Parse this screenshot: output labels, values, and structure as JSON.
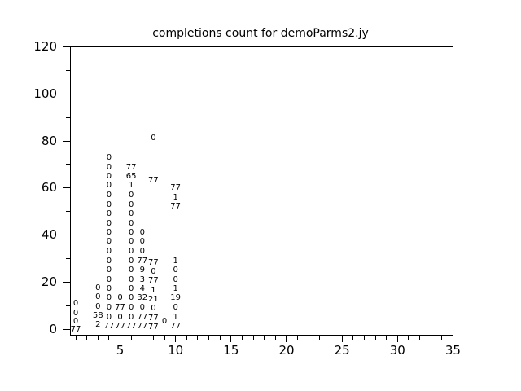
{
  "colors": {
    "background": "#ffffff",
    "foreground": "#000000"
  },
  "chart_data": {
    "type": "scatter",
    "marker_style": "text-label",
    "title": "completions count for demoParms2.jy",
    "xlabel": "",
    "ylabel": "",
    "xlim": [
      0.5,
      35
    ],
    "ylim": [
      0,
      120
    ],
    "grid": false,
    "legend": null,
    "tick_direction": "out",
    "x_major_ticks": [
      5,
      10,
      15,
      20,
      25,
      30,
      35
    ],
    "x_major_tick_labels": [
      "5",
      "10",
      "15",
      "20",
      "25",
      "30",
      "35"
    ],
    "x_minor_tick_range": [
      1,
      35
    ],
    "x_minor_tick_step": 1,
    "y_major_ticks": [
      0,
      20,
      40,
      60,
      80,
      100,
      120
    ],
    "y_major_tick_labels": [
      "0",
      "20",
      "40",
      "60",
      "80",
      "100",
      "120"
    ],
    "y_minor_tick_step": 10,
    "points_format": [
      "x",
      "y",
      "label"
    ],
    "points": [
      [
        1,
        10.7,
        "0"
      ],
      [
        1,
        6.6,
        "0"
      ],
      [
        1,
        3.1,
        "0"
      ],
      [
        1,
        -0.3,
        "77"
      ],
      [
        3,
        17.3,
        "0"
      ],
      [
        3,
        13.5,
        "0"
      ],
      [
        3,
        9.4,
        "0"
      ],
      [
        3,
        5.5,
        "58"
      ],
      [
        3,
        1.7,
        "2"
      ],
      [
        4,
        72.7,
        "0"
      ],
      [
        4,
        68.7,
        "0"
      ],
      [
        4,
        64.8,
        "0"
      ],
      [
        4,
        60.8,
        "0"
      ],
      [
        4,
        56.8,
        "0"
      ],
      [
        4,
        52.8,
        "0"
      ],
      [
        4,
        48.8,
        "0"
      ],
      [
        4,
        44.8,
        "0"
      ],
      [
        4,
        40.9,
        "0"
      ],
      [
        4,
        36.9,
        "0"
      ],
      [
        4,
        32.9,
        "0"
      ],
      [
        4,
        28.9,
        "0"
      ],
      [
        4,
        24.9,
        "0"
      ],
      [
        4,
        20.9,
        "0"
      ],
      [
        4,
        17.0,
        "0"
      ],
      [
        4,
        13.0,
        "0"
      ],
      [
        4,
        9.0,
        "0"
      ],
      [
        4,
        5.0,
        "0"
      ],
      [
        4,
        1.0,
        "77"
      ],
      [
        5,
        13.0,
        "0"
      ],
      [
        5,
        9.0,
        "77"
      ],
      [
        5,
        5.0,
        "0"
      ],
      [
        5,
        1.0,
        "77"
      ],
      [
        6,
        68.7,
        "77"
      ],
      [
        6,
        64.8,
        "65"
      ],
      [
        6,
        60.8,
        "1"
      ],
      [
        6,
        56.8,
        "0"
      ],
      [
        6,
        52.8,
        "0"
      ],
      [
        6,
        48.8,
        "0"
      ],
      [
        6,
        44.8,
        "0"
      ],
      [
        6,
        40.9,
        "0"
      ],
      [
        6,
        36.9,
        "0"
      ],
      [
        6,
        32.9,
        "0"
      ],
      [
        6,
        28.9,
        "0"
      ],
      [
        6,
        24.9,
        "0"
      ],
      [
        6,
        20.9,
        "0"
      ],
      [
        6,
        17.0,
        "0"
      ],
      [
        6,
        13.0,
        "0"
      ],
      [
        6,
        9.0,
        "0"
      ],
      [
        6,
        5.0,
        "0"
      ],
      [
        6,
        1.0,
        "77"
      ],
      [
        7,
        40.9,
        "0"
      ],
      [
        7,
        36.9,
        "0"
      ],
      [
        7,
        32.9,
        "0"
      ],
      [
        7,
        28.9,
        "77"
      ],
      [
        7,
        24.9,
        "9"
      ],
      [
        7,
        20.9,
        "3"
      ],
      [
        7,
        17.0,
        "4"
      ],
      [
        7,
        13.0,
        "32"
      ],
      [
        7,
        9.0,
        "0"
      ],
      [
        7,
        5.0,
        "77"
      ],
      [
        7,
        1.0,
        "77"
      ],
      [
        8,
        81.0,
        "0"
      ],
      [
        8,
        63.0,
        "77"
      ],
      [
        8,
        28.1,
        "77"
      ],
      [
        8,
        24.2,
        "0"
      ],
      [
        8,
        20.3,
        "77"
      ],
      [
        8,
        16.3,
        "1"
      ],
      [
        8,
        12.5,
        "21"
      ],
      [
        8,
        8.5,
        "0"
      ],
      [
        8,
        4.5,
        "77"
      ],
      [
        8,
        0.7,
        "77"
      ],
      [
        9,
        3.1,
        "0"
      ],
      [
        10,
        59.9,
        "77"
      ],
      [
        10,
        55.9,
        "1"
      ],
      [
        10,
        51.9,
        "77"
      ],
      [
        10,
        28.7,
        "1"
      ],
      [
        10,
        24.9,
        "0"
      ],
      [
        10,
        20.9,
        "0"
      ],
      [
        10,
        17.0,
        "1"
      ],
      [
        10,
        13.0,
        "19"
      ],
      [
        10,
        9.0,
        "0"
      ],
      [
        10,
        5.0,
        "1"
      ],
      [
        10,
        1.0,
        "77"
      ]
    ]
  }
}
